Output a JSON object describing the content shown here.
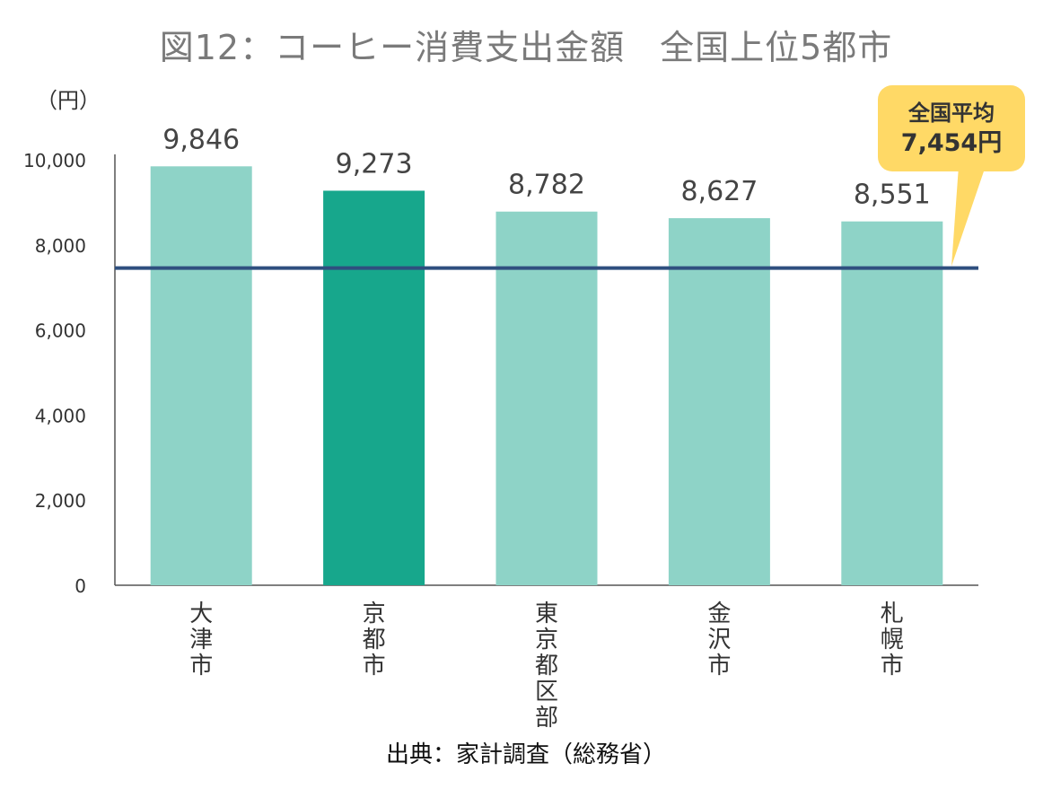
{
  "chart_data": {
    "type": "bar",
    "title": "図12：コーヒー消費支出金額　全国上位5都市",
    "ylabel": "（円）",
    "categories": [
      "大津市",
      "京都市",
      "東京都区部",
      "金沢市",
      "札幌市"
    ],
    "values": [
      9846,
      9273,
      8782,
      8627,
      8551
    ],
    "value_labels": [
      "9,846",
      "9,273",
      "8,782",
      "8,627",
      "8,551"
    ],
    "highlight_category": "京都市",
    "ylim": [
      0,
      10000
    ],
    "yticks": [
      "0",
      "2,000",
      "4,000",
      "6,000",
      "8,000",
      "10,000"
    ],
    "average": {
      "value": 7454,
      "label_line1": "全国平均",
      "label_line2": "7,454円"
    },
    "grid": false,
    "colors": {
      "bar": "#8ed3c7",
      "bar_highlight": "#17a78c",
      "average_line": "#2f4f7f",
      "callout": "#ffd966"
    },
    "source": "出典：家計調査（総務省）"
  }
}
